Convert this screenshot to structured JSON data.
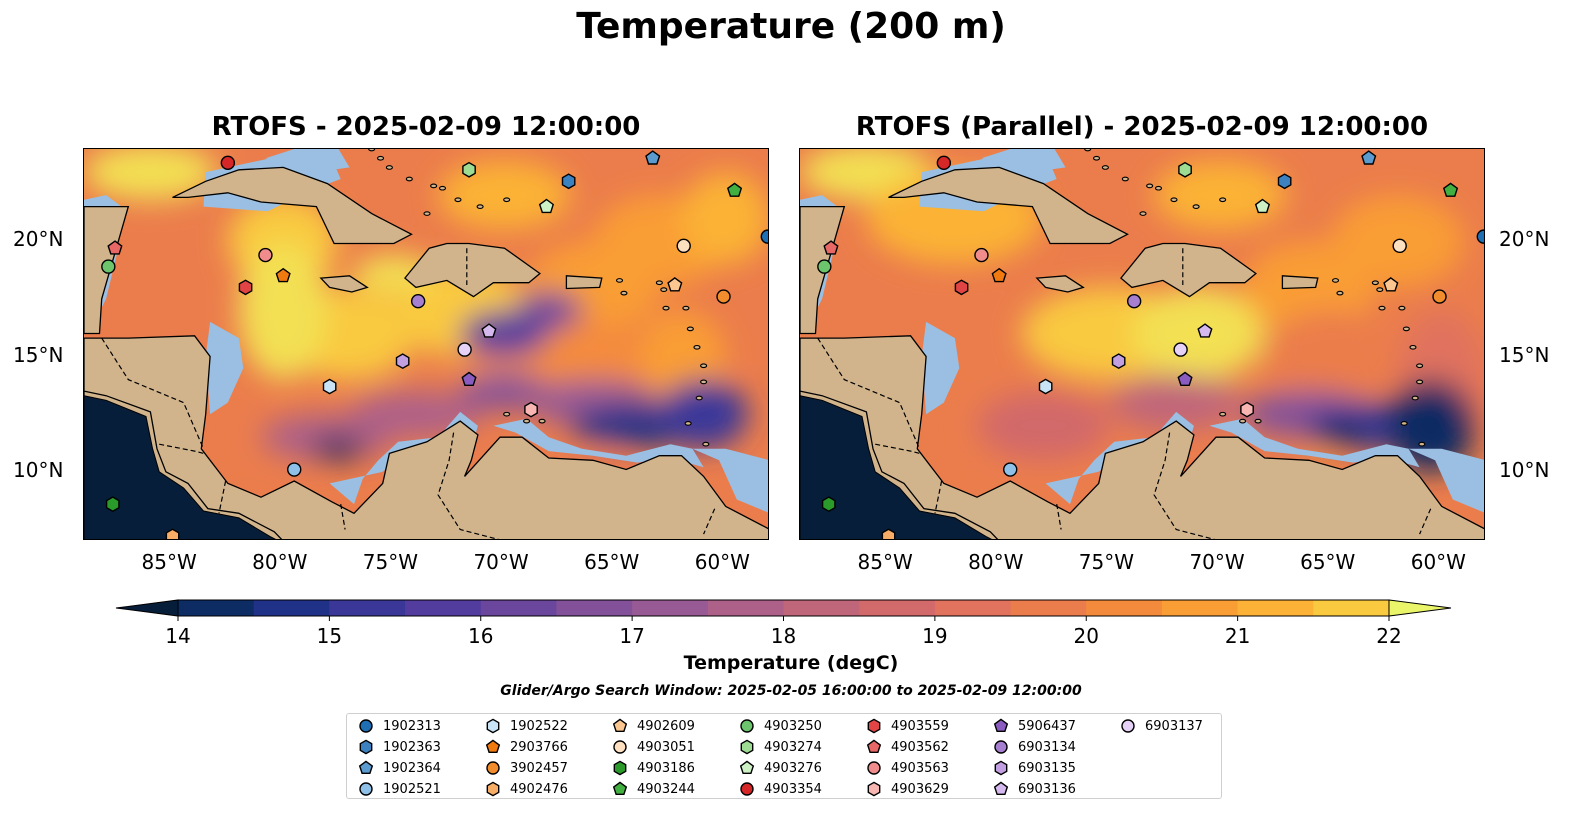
{
  "title": "Temperature (200 m)",
  "panels": [
    {
      "title": "RTOFS - 2025-02-09 12:00:00"
    },
    {
      "title": "RTOFS (Parallel) - 2025-02-09 12:00:00"
    }
  ],
  "map": {
    "lon_range": [
      -89,
      -58
    ],
    "lat_range": [
      7,
      24
    ],
    "lon_ticks": [
      "85°W",
      "80°W",
      "75°W",
      "70°W",
      "65°W",
      "60°W"
    ],
    "lat_ticks": [
      "20°N",
      "15°N",
      "10°N"
    ],
    "land_color": "#d1b48c",
    "shelf_color": "#9abfe3"
  },
  "colorbar": {
    "label": "Temperature (degC)",
    "ticks": [
      "14",
      "15",
      "16",
      "17",
      "18",
      "19",
      "20",
      "21",
      "22"
    ],
    "range": [
      14,
      22
    ],
    "colors": [
      "#061e3a",
      "#0d2c63",
      "#1f3288",
      "#3b3799",
      "#523c9e",
      "#6a469d",
      "#82519a",
      "#975a94",
      "#ad6088",
      "#c0667a",
      "#d2696b",
      "#e0725e",
      "#eb7d4c",
      "#f48b3c",
      "#f99d35",
      "#fbb236",
      "#f9c940",
      "#f3e052",
      "#eaf56a"
    ]
  },
  "search_window": "Glider/Argo Search Window: 2025-02-05 16:00:00 to 2025-02-09 12:00:00",
  "legend": [
    {
      "label": "1902313",
      "marker": "circle",
      "color": "#1f6fb4"
    },
    {
      "label": "1902363",
      "marker": "hexagon",
      "color": "#3d82c0"
    },
    {
      "label": "1902364",
      "marker": "pentagon",
      "color": "#5b9bd0"
    },
    {
      "label": "1902521",
      "marker": "circle",
      "color": "#8fc1e8"
    },
    {
      "label": "1902522",
      "marker": "hexagon",
      "color": "#c8e4f6"
    },
    {
      "label": "2903766",
      "marker": "pentagon",
      "color": "#f07a10"
    },
    {
      "label": "3902457",
      "marker": "circle",
      "color": "#f28d2e"
    },
    {
      "label": "4902476",
      "marker": "hexagon",
      "color": "#f8ad66"
    },
    {
      "label": "4902609",
      "marker": "pentagon",
      "color": "#fbc68f"
    },
    {
      "label": "4903051",
      "marker": "circle",
      "color": "#fde0c0"
    },
    {
      "label": "4903186",
      "marker": "hexagon",
      "color": "#2a9a2a"
    },
    {
      "label": "4903244",
      "marker": "pentagon",
      "color": "#41b041"
    },
    {
      "label": "4903250",
      "marker": "circle",
      "color": "#6cc56c"
    },
    {
      "label": "4903274",
      "marker": "hexagon",
      "color": "#9ddc92"
    },
    {
      "label": "4903276",
      "marker": "pentagon",
      "color": "#cdf1c4"
    },
    {
      "label": "4903354",
      "marker": "circle",
      "color": "#d62728"
    },
    {
      "label": "4903559",
      "marker": "hexagon",
      "color": "#e04444"
    },
    {
      "label": "4903562",
      "marker": "pentagon",
      "color": "#e86767"
    },
    {
      "label": "4903563",
      "marker": "circle",
      "color": "#f08c8c"
    },
    {
      "label": "4903629",
      "marker": "hexagon",
      "color": "#f8b6b2"
    },
    {
      "label": "5906437",
      "marker": "pentagon",
      "color": "#8a5cc0"
    },
    {
      "label": "6903134",
      "marker": "circle",
      "color": "#a67fd0"
    },
    {
      "label": "6903135",
      "marker": "hexagon",
      "color": "#c19fe0"
    },
    {
      "label": "6903136",
      "marker": "pentagon",
      "color": "#d5b9ee"
    },
    {
      "label": "6903137",
      "marker": "circle",
      "color": "#e6d2f6"
    }
  ],
  "floats": [
    {
      "id": "4903354",
      "lon": -82.5,
      "lat": 23.4
    },
    {
      "id": "1902364",
      "lon": -63.3,
      "lat": 23.6
    },
    {
      "id": "1902363",
      "lon": -67.1,
      "lat": 22.6
    },
    {
      "id": "4903274",
      "lon": -71.6,
      "lat": 23.1
    },
    {
      "id": "4903244",
      "lon": -59.6,
      "lat": 22.2
    },
    {
      "id": "4903276",
      "lon": -68.1,
      "lat": 21.5
    },
    {
      "id": "1902313",
      "lon": -58.1,
      "lat": 20.2
    },
    {
      "id": "4903051",
      "lon": -61.9,
      "lat": 19.8
    },
    {
      "id": "4902609",
      "lon": -62.3,
      "lat": 18.1
    },
    {
      "id": "3902457",
      "lon": -60.1,
      "lat": 17.6
    },
    {
      "id": "4903562",
      "lon": -87.6,
      "lat": 19.7
    },
    {
      "id": "4903250",
      "lon": -87.9,
      "lat": 18.9
    },
    {
      "id": "4903563",
      "lon": -80.8,
      "lat": 19.4
    },
    {
      "id": "2903766",
      "lon": -80.0,
      "lat": 18.5
    },
    {
      "id": "4903559",
      "lon": -81.7,
      "lat": 18.0
    },
    {
      "id": "6903134",
      "lon": -73.9,
      "lat": 17.4
    },
    {
      "id": "6903136",
      "lon": -70.7,
      "lat": 16.1
    },
    {
      "id": "6903137",
      "lon": -71.8,
      "lat": 15.3
    },
    {
      "id": "6903135",
      "lon": -74.6,
      "lat": 14.8
    },
    {
      "id": "5906437",
      "lon": -71.6,
      "lat": 14.0
    },
    {
      "id": "1902522",
      "lon": -77.9,
      "lat": 13.7
    },
    {
      "id": "4903629",
      "lon": -68.8,
      "lat": 12.7
    },
    {
      "id": "1902521",
      "lon": -79.5,
      "lat": 10.1
    },
    {
      "id": "4903186",
      "lon": -87.7,
      "lat": 8.6
    },
    {
      "id": "4902476",
      "lon": -85.0,
      "lat": 7.2
    }
  ]
}
